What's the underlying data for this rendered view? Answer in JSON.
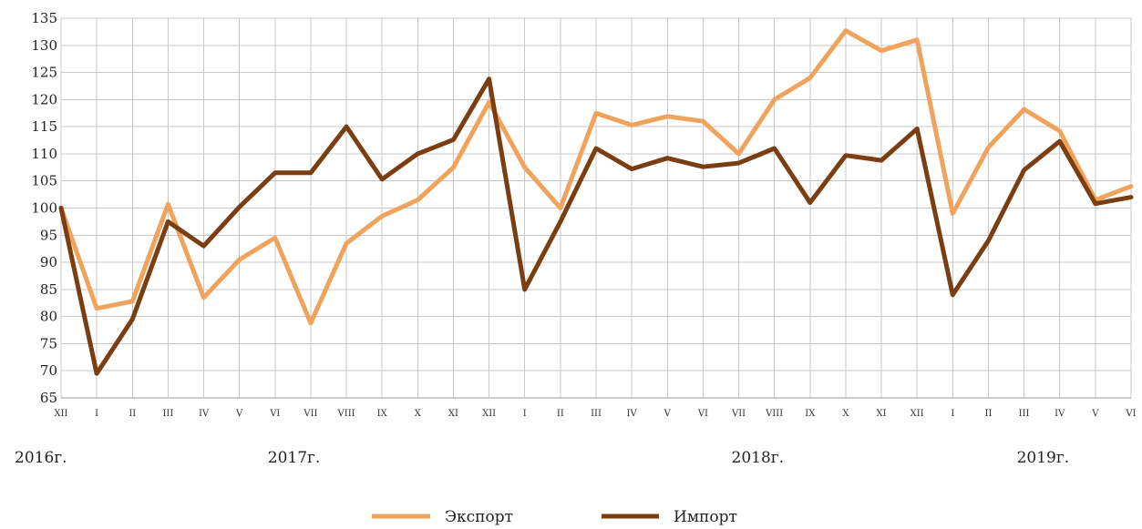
{
  "chart_data": {
    "type": "line",
    "title": "",
    "xlabel": "",
    "ylabel": "",
    "ylim": [
      65,
      135
    ],
    "yticks": [
      65,
      70,
      75,
      80,
      85,
      90,
      95,
      100,
      105,
      110,
      115,
      120,
      125,
      130,
      135
    ],
    "grid": true,
    "legend_position": "bottom-center",
    "categories": [
      "XII",
      "I",
      "II",
      "III",
      "IV",
      "V",
      "VI",
      "VII",
      "VIII",
      "IX",
      "X",
      "XI",
      "XII",
      "I",
      "II",
      "III",
      "IV",
      "V",
      "VI",
      "VII",
      "VIII",
      "IX",
      "X",
      "XI",
      "XII",
      "I",
      "II",
      "III",
      "IV",
      "V",
      "VI"
    ],
    "year_labels": [
      {
        "label": "2016г.",
        "category_index": 0
      },
      {
        "label": "2017г.",
        "category_index": 6
      },
      {
        "label": "2018г.",
        "category_index": 19
      },
      {
        "label": "2019г.",
        "category_index": 27
      }
    ],
    "series": [
      {
        "name": "Экспорт",
        "color": "#f0a35c",
        "values": [
          100,
          81.5,
          82.8,
          100.7,
          83.5,
          90.5,
          94.5,
          78.8,
          93.5,
          98.5,
          101.5,
          107.5,
          119.5,
          107.5,
          100,
          117.5,
          115.3,
          116.9,
          116,
          110,
          120,
          124,
          132.7,
          129,
          131,
          99,
          111.2,
          118.2,
          114.2,
          101.5,
          104
        ]
      },
      {
        "name": "Импорт",
        "color": "#7a3e12",
        "values": [
          100,
          69.5,
          79.5,
          97.5,
          93,
          100.2,
          106.5,
          106.5,
          115,
          105.3,
          110,
          112.6,
          123.8,
          85,
          97.5,
          111,
          107.2,
          109.2,
          107.6,
          108.3,
          111,
          101,
          109.7,
          108.8,
          114.6,
          84,
          94,
          107,
          112.3,
          100.8,
          102
        ]
      }
    ]
  }
}
